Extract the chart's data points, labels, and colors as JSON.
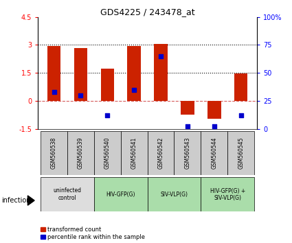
{
  "title": "GDS4225 / 243478_at",
  "samples": [
    "GSM560538",
    "GSM560539",
    "GSM560540",
    "GSM560541",
    "GSM560542",
    "GSM560543",
    "GSM560544",
    "GSM560545"
  ],
  "transformed_count": [
    2.93,
    2.82,
    1.72,
    2.93,
    3.05,
    -0.75,
    -0.95,
    1.48
  ],
  "percentile_rank_pct": [
    33,
    30,
    12,
    35,
    65,
    2,
    2,
    12
  ],
  "ylim_left": [
    -1.5,
    4.5
  ],
  "ylim_right": [
    0,
    100
  ],
  "yticks_left": [
    -1.5,
    0,
    1.5,
    3,
    4.5
  ],
  "ytick_labels_left": [
    "-1.5",
    "0",
    "1.5",
    "3",
    "4.5"
  ],
  "yticks_right": [
    0,
    25,
    50,
    75,
    100
  ],
  "ytick_labels_right": [
    "0",
    "25",
    "50",
    "75",
    "100%"
  ],
  "hlines_dotted": [
    1.5,
    3.0
  ],
  "hline_dashed": 0.0,
  "bar_color": "#cc2200",
  "dot_color": "#0000cc",
  "infection_groups": [
    {
      "label": "uninfected\ncontrol",
      "start": 0,
      "end": 2,
      "color": "#dddddd"
    },
    {
      "label": "HIV-GFP(G)",
      "start": 2,
      "end": 4,
      "color": "#aaddaa"
    },
    {
      "label": "SIV-VLP(G)",
      "start": 4,
      "end": 6,
      "color": "#aaddaa"
    },
    {
      "label": "HIV-GFP(G) +\nSIV-VLP(G)",
      "start": 6,
      "end": 8,
      "color": "#aaddaa"
    }
  ],
  "legend_red": "transformed count",
  "legend_blue": "percentile rank within the sample",
  "infection_label": "infection",
  "bar_width": 0.5,
  "dot_size": 20
}
